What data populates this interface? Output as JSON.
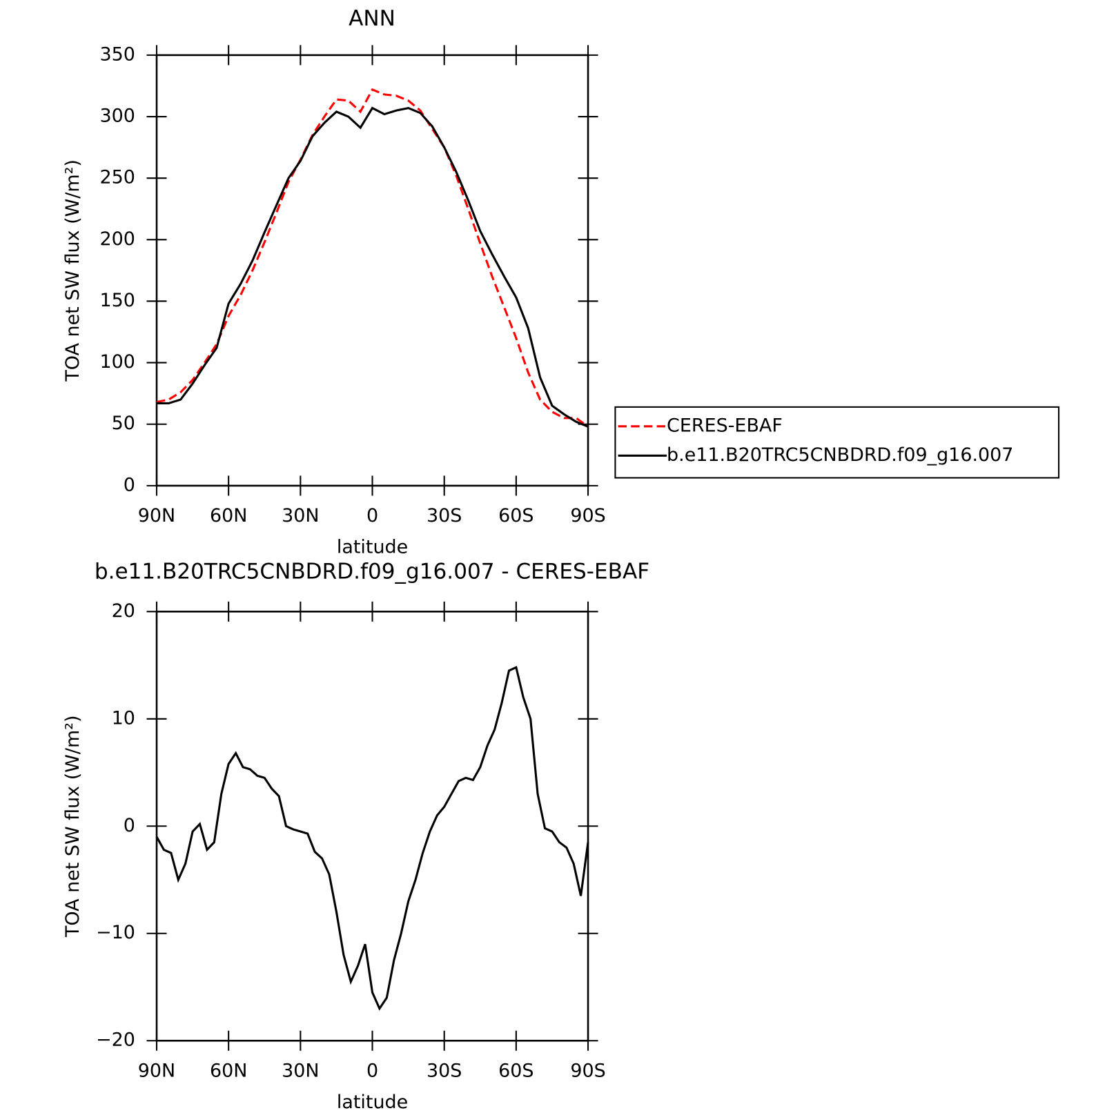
{
  "chart_data": [
    {
      "type": "line",
      "title": "ANN",
      "xlabel": "latitude",
      "ylabel": "TOA net SW flux (W/m²)",
      "x": [
        90,
        85,
        80,
        75,
        70,
        65,
        60,
        55,
        50,
        45,
        40,
        35,
        30,
        25,
        20,
        15,
        10,
        5,
        0,
        -5,
        -10,
        -15,
        -20,
        -25,
        -30,
        -35,
        -40,
        -45,
        -50,
        -55,
        -60,
        -65,
        -70,
        -75,
        -80,
        -85,
        -90
      ],
      "series": [
        {
          "name": "CERES-EBAF",
          "color": "#ff0000",
          "linestyle": "dashed",
          "values": [
            68,
            70,
            76,
            86,
            100,
            115,
            138,
            155,
            175,
            198,
            222,
            247,
            265,
            285,
            300,
            314,
            313,
            304,
            322,
            318,
            317,
            313,
            305,
            290,
            275,
            252,
            225,
            197,
            170,
            145,
            120,
            92,
            70,
            60,
            55,
            55,
            48
          ]
        },
        {
          "name": "b.e11.B20TRC5CNBDRD.f09_g16.007",
          "color": "#000000",
          "linestyle": "solid",
          "values": [
            67,
            67,
            70,
            83,
            98,
            112,
            148,
            164,
            183,
            206,
            228,
            250,
            264,
            284,
            295,
            304,
            300,
            291,
            307,
            302,
            305,
            307,
            303,
            292,
            275,
            255,
            232,
            207,
            188,
            170,
            153,
            128,
            88,
            65,
            58,
            52,
            48
          ]
        }
      ],
      "xlim": [
        90,
        -90
      ],
      "xticks": [
        {
          "value": 90,
          "label": "90N"
        },
        {
          "value": 60,
          "label": "60N"
        },
        {
          "value": 30,
          "label": "30N"
        },
        0,
        {
          "value": -30,
          "label": "30S"
        },
        {
          "value": -60,
          "label": "60S"
        },
        {
          "value": -90,
          "label": "90S"
        }
      ],
      "ylim": [
        0,
        350
      ],
      "yticks": [
        0,
        50,
        100,
        150,
        200,
        250,
        300,
        350
      ],
      "legend": "right"
    },
    {
      "type": "line",
      "title": "b.e11.B20TRC5CNBDRD.f09_g16.007 - CERES-EBAF",
      "xlabel": "latitude",
      "ylabel": "TOA net SW flux (W/m²)",
      "x": [
        90,
        87,
        84,
        81,
        78,
        75,
        72,
        69,
        66,
        63,
        60,
        57,
        54,
        51,
        48,
        45,
        42,
        39,
        36,
        33,
        30,
        27,
        24,
        21,
        18,
        15,
        12,
        9,
        6,
        3,
        0,
        -3,
        -6,
        -9,
        -12,
        -15,
        -18,
        -21,
        -24,
        -27,
        -30,
        -33,
        -36,
        -39,
        -42,
        -45,
        -48,
        -51,
        -54,
        -57,
        -60,
        -63,
        -66,
        -69,
        -72,
        -75,
        -78,
        -81,
        -84,
        -87,
        -90
      ],
      "values": [
        -1,
        -2.2,
        -2.5,
        -5,
        -3.5,
        -0.5,
        0.2,
        -2.2,
        -1.5,
        3,
        5.8,
        6.8,
        5.5,
        5.3,
        4.7,
        4.5,
        3.5,
        2.8,
        0,
        -0.3,
        -0.5,
        -0.7,
        -2.4,
        -3,
        -4.5,
        -8,
        -12,
        -14.5,
        -13,
        -11,
        -15.5,
        -17,
        -16,
        -12.5,
        -10,
        -7,
        -5,
        -2.5,
        -0.5,
        1,
        1.8,
        3,
        4.2,
        4.5,
        4.3,
        5.5,
        7.5,
        9,
        11.5,
        14.5,
        14.8,
        12,
        10,
        3,
        -0.2,
        -0.5,
        -1.5,
        -2,
        -3.5,
        -6.5,
        -1.5
      ],
      "color": "#000000",
      "xlim": [
        90,
        -90
      ],
      "xticks": [
        {
          "value": 90,
          "label": "90N"
        },
        {
          "value": 60,
          "label": "60N"
        },
        {
          "value": 30,
          "label": "30N"
        },
        0,
        {
          "value": -30,
          "label": "30S"
        },
        {
          "value": -60,
          "label": "60S"
        },
        {
          "value": -90,
          "label": "90S"
        }
      ],
      "ylim": [
        -20,
        20
      ],
      "yticks": [
        {
          "value": -20,
          "label": "−20"
        },
        {
          "value": -10,
          "label": "−10"
        },
        0,
        10,
        20
      ]
    }
  ]
}
